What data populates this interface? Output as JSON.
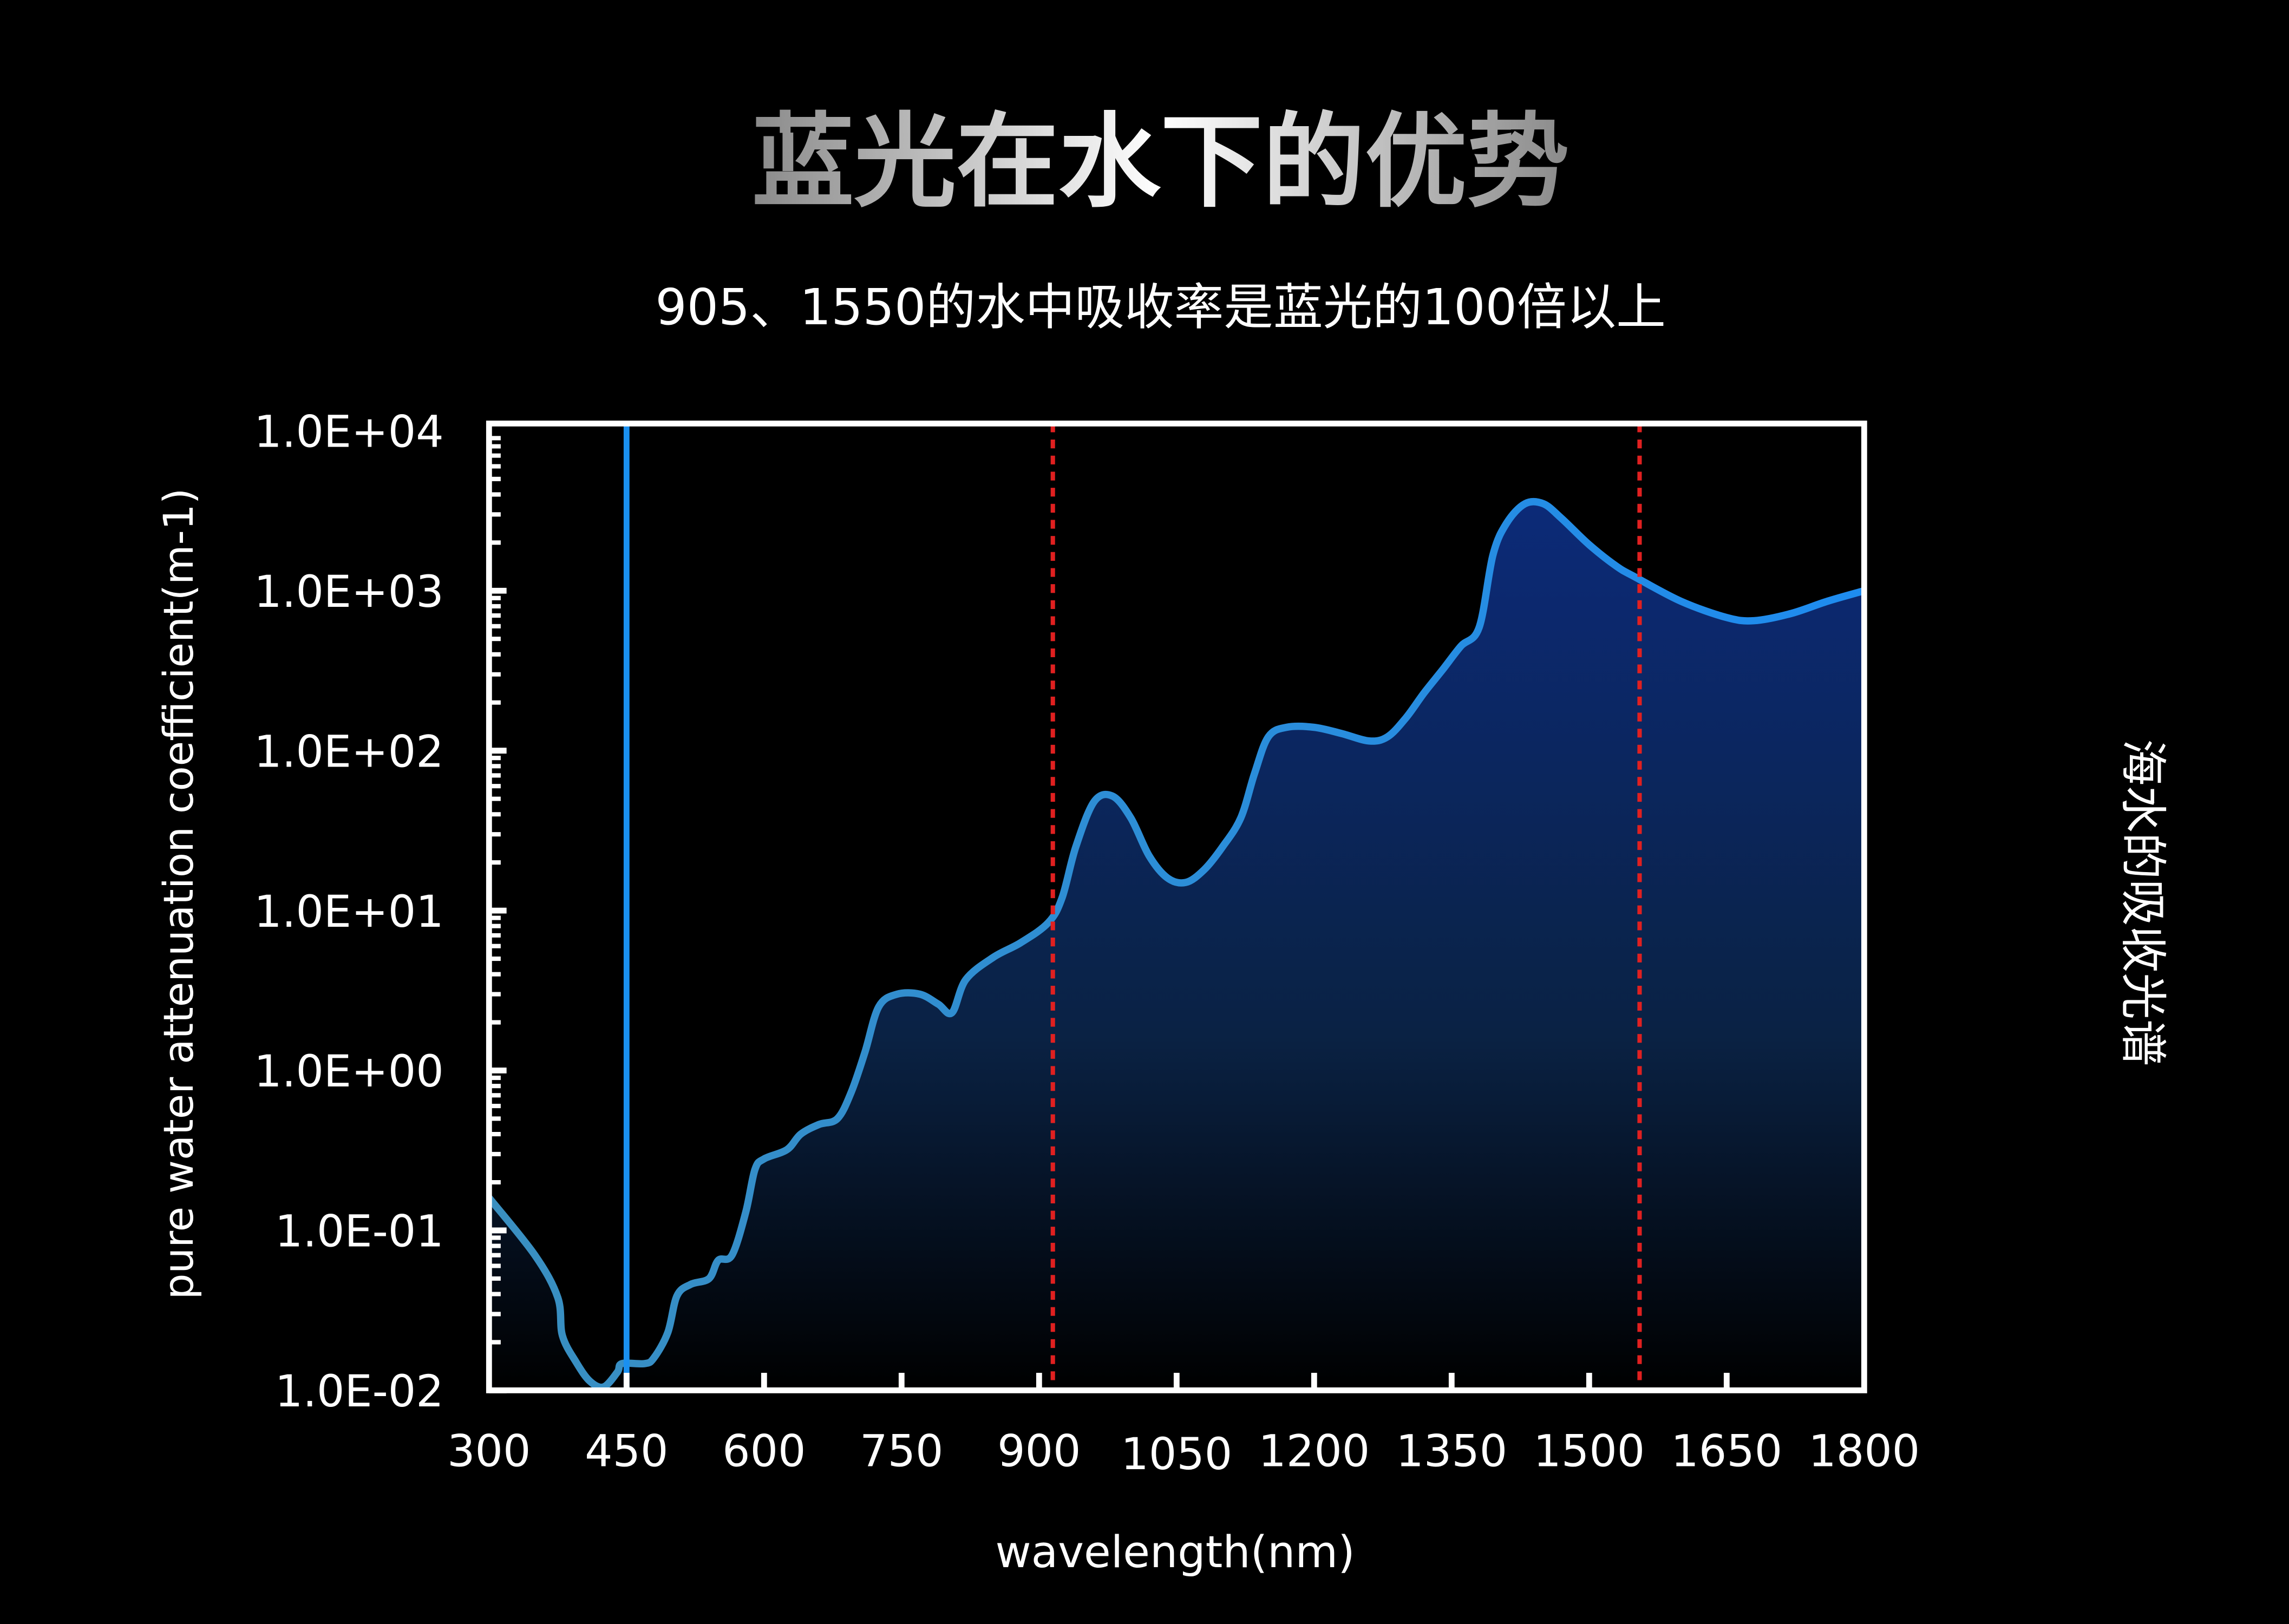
{
  "title": "蓝光在水下的优势",
  "subtitle": "905、1550的水中吸收率是蓝光的100倍以上",
  "right_label": "海水的吸收光谱",
  "colors": {
    "background": "#000000",
    "curve_start": "#3a8fc0",
    "curve_end": "#1e8cf0",
    "fill_top": "#0c2a78",
    "fill_bottom": "#000000",
    "blue_marker": "#1a90f0",
    "red_marker": "#e02020",
    "axes": "#ffffff"
  },
  "chart_data": {
    "type": "area",
    "xlabel": "wavelength(nm)",
    "ylabel": "pure water attenuation coefficient(m-1)",
    "xlim": [
      300,
      1800
    ],
    "ylim": [
      0.01,
      10000
    ],
    "yscale": "log",
    "grid": false,
    "x_ticks": [
      "300",
      "450",
      "600",
      "750",
      "900",
      "1050",
      "1200",
      "1350",
      "1500",
      "1650",
      "1800"
    ],
    "y_ticks": [
      "1.0E+04",
      "1.0E+03",
      "1.0E+02",
      "1.0E+01",
      "1.0E+00",
      "1.0E-01",
      "1.0E-02"
    ],
    "markers": [
      {
        "x": 450,
        "style": "solid",
        "color": "blue"
      },
      {
        "x": 915,
        "style": "dotted",
        "color": "red"
      },
      {
        "x": 1555,
        "style": "dotted",
        "color": "red"
      }
    ],
    "x": [
      300,
      350,
      375,
      380,
      395,
      410,
      425,
      440,
      445,
      470,
      480,
      495,
      505,
      520,
      540,
      550,
      565,
      580,
      590,
      600,
      625,
      640,
      660,
      680,
      695,
      710,
      725,
      745,
      770,
      790,
      805,
      820,
      850,
      880,
      910,
      925,
      940,
      960,
      980,
      1000,
      1020,
      1040,
      1060,
      1080,
      1100,
      1120,
      1135,
      1150,
      1170,
      1200,
      1230,
      1260,
      1280,
      1300,
      1320,
      1340,
      1360,
      1380,
      1395,
      1410,
      1430,
      1450,
      1470,
      1500,
      1530,
      1550,
      1600,
      1650,
      1680,
      1720,
      1760,
      1800
    ],
    "y": [
      0.16,
      0.07,
      0.038,
      0.022,
      0.015,
      0.0114,
      0.0105,
      0.013,
      0.0147,
      0.0147,
      0.016,
      0.023,
      0.039,
      0.046,
      0.05,
      0.065,
      0.07,
      0.13,
      0.24,
      0.28,
      0.32,
      0.4,
      0.46,
      0.5,
      0.73,
      1.3,
      2.5,
      3.0,
      3.0,
      2.6,
      2.3,
      3.7,
      5.1,
      6.3,
      8.4,
      12,
      25,
      48,
      52,
      38,
      22,
      16,
      15,
      18,
      25,
      38,
      72,
      122,
      140,
      140,
      128,
      115,
      122,
      160,
      230,
      320,
      450,
      590,
      1670,
      2650,
      3500,
      3500,
      2830,
      1940,
      1420,
      1220,
      860,
      680,
      650,
      720,
      860,
      1000
    ]
  }
}
